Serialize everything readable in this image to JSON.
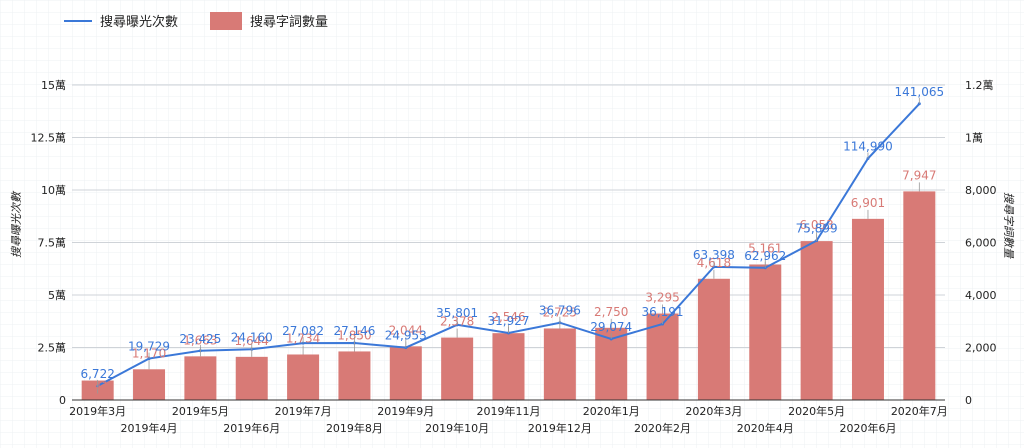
{
  "chart_data": {
    "type": "bar",
    "categories": [
      "2019年3月",
      "2019年4月",
      "2019年5月",
      "2019年6月",
      "2019年7月",
      "2019年8月",
      "2019年9月",
      "2019年10月",
      "2019年11月",
      "2019年12月",
      "2020年1月",
      "2020年2月",
      "2020年3月",
      "2020年4月",
      "2020年5月",
      "2020年6月",
      "2020年7月"
    ],
    "series": [
      {
        "name": "搜尋曝光次數",
        "type": "line",
        "axis": "left",
        "color": "#3b78d8",
        "values": [
          6722,
          19729,
          23425,
          24160,
          27082,
          27146,
          24953,
          35801,
          31927,
          36796,
          29074,
          36191,
          63398,
          62962,
          75899,
          114990,
          141065
        ],
        "labels": [
          "6,722",
          "19,729",
          "23,425",
          "24,160",
          "27,082",
          "27,146",
          "24,953",
          "35,801",
          "31,927",
          "36,796",
          "29,074",
          "36,191",
          "63,398",
          "62,962",
          "75,899",
          "114,990",
          "141,065"
        ]
      },
      {
        "name": "搜尋字詞數量",
        "type": "bar",
        "axis": "right",
        "color": "#d87a76",
        "values": [
          741,
          1170,
          1663,
          1644,
          1734,
          1850,
          2044,
          2378,
          2546,
          2725,
          2750,
          3295,
          4618,
          5161,
          6053,
          6901,
          7947
        ],
        "labels": [
          "741",
          "1,170",
          "1,663",
          "1,644",
          "1,734",
          "1,850",
          "2,044",
          "2,378",
          "2,546",
          "2,725",
          "2,750",
          "3,295",
          "4,618",
          "5,161",
          "6,053",
          "6,901",
          "7,947"
        ]
      }
    ],
    "left_axis": {
      "label": "搜尋曝光次數",
      "min": 0,
      "max": 150000,
      "ticks": [
        0,
        25000,
        50000,
        75000,
        100000,
        125000,
        150000
      ],
      "tick_labels": [
        "0",
        "2.5萬",
        "5萬",
        "7.5萬",
        "10萬",
        "12.5萬",
        "15萬"
      ]
    },
    "right_axis": {
      "label": "搜尋字詞數量",
      "min": 0,
      "max": 12000,
      "ticks": [
        0,
        2000,
        4000,
        6000,
        8000,
        10000,
        12000
      ],
      "tick_labels": [
        "0",
        "2,000",
        "4,000",
        "6,000",
        "8,000",
        "1萬",
        "1.2萬"
      ]
    },
    "grid": true,
    "legend": "top-left",
    "colors": {
      "line": "#3b78d8",
      "bar": "#d87a76",
      "bar_label": "#d87a76",
      "line_label": "#3b78d8"
    }
  }
}
